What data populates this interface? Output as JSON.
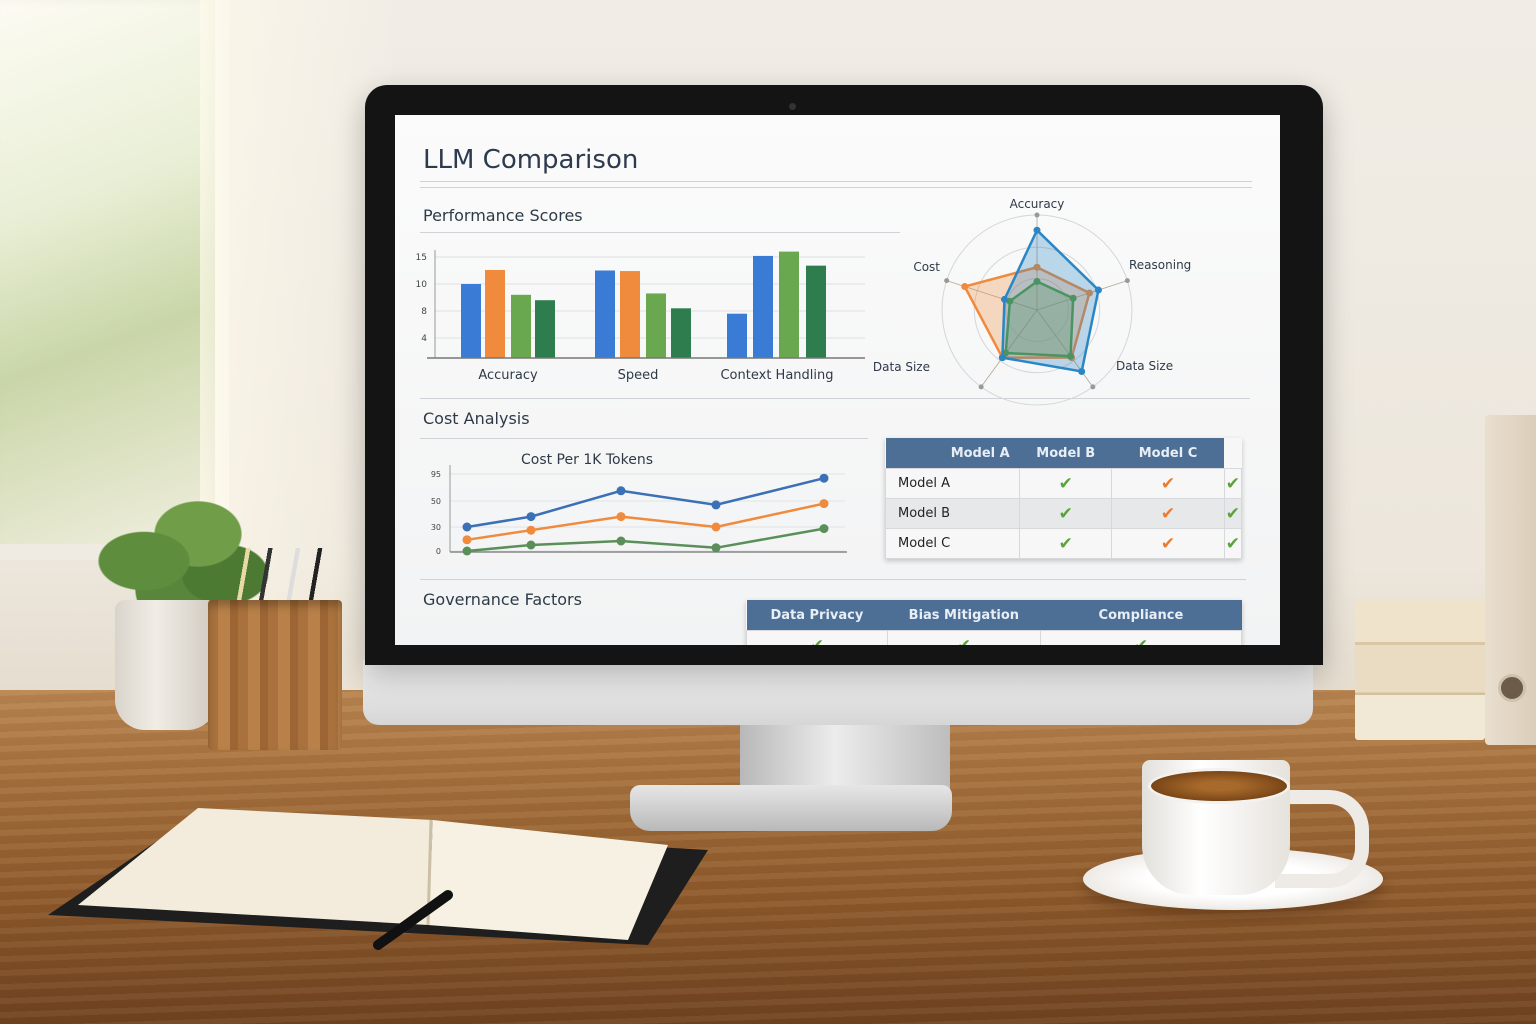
{
  "dashboard": {
    "title": "LLM Comparison",
    "sections": {
      "performance": "Performance Scores",
      "cost": "Cost Analysis",
      "governance": "Governance Factors"
    }
  },
  "chart_data": [
    {
      "type": "bar",
      "title": "",
      "categories": [
        "Accuracy",
        "Speed",
        "Context Handling"
      ],
      "y_ticks": [
        4,
        8,
        10,
        15
      ],
      "values": [
        [
          10,
          12.6,
          9.2,
          8.8
        ],
        [
          12.5,
          12.4,
          9.3,
          8.2
        ],
        [
          7.6,
          15.2,
          16,
          13.4
        ]
      ],
      "bar_colors": [
        [
          "#3a7bd5",
          "#f08a3c",
          "#6aa84f",
          "#2e7d4f"
        ],
        [
          "#3a7bd5",
          "#f08a3c",
          "#6aa84f",
          "#2e7d4f"
        ],
        [
          "#3a7bd5",
          "#3a7bd5",
          "#6aa84f",
          "#2e7d4f"
        ]
      ],
      "grid": true
    },
    {
      "type": "radar",
      "axes": [
        "Accuracy",
        "Reasoning",
        "Data Size",
        "Data Size",
        "Cost"
      ],
      "range": [
        0,
        1
      ],
      "series": [
        {
          "color": "#f08a3c",
          "values": [
            0.45,
            0.58,
            0.62,
            0.62,
            0.8
          ]
        },
        {
          "color": "#5a9a3a",
          "values": [
            0.3,
            0.4,
            0.6,
            0.56,
            0.3
          ]
        },
        {
          "color": "#2a86c4",
          "values": [
            0.84,
            0.68,
            0.8,
            0.62,
            0.36
          ]
        }
      ]
    },
    {
      "type": "line",
      "title": "Cost Per 1K Tokens",
      "y_ticks": [
        0,
        30,
        50,
        95
      ],
      "x": [
        1,
        2,
        3,
        4,
        5
      ],
      "series": [
        {
          "color": "#3b6fb6",
          "values": [
            30,
            38,
            67,
            47,
            88
          ]
        },
        {
          "color": "#f08a3c",
          "values": [
            14,
            26,
            38,
            30,
            48
          ]
        },
        {
          "color": "#5b8f5a",
          "values": [
            0,
            7.5,
            12.5,
            4,
            28
          ]
        }
      ],
      "grid": true
    }
  ],
  "model_table": {
    "headers": [
      "Model A",
      "Model B",
      "Model C"
    ],
    "rows": [
      {
        "label": "Model A",
        "cells": [
          "✔",
          "✔",
          "✔"
        ]
      },
      {
        "label": "Model B",
        "cells": [
          "✔",
          "✔",
          "✔"
        ]
      },
      {
        "label": "Model C",
        "cells": [
          "✔",
          "✔",
          "✔"
        ]
      }
    ],
    "check_colors": [
      "#5aa33c",
      "#ee7a2a",
      "#5aa33c"
    ]
  },
  "governance_table": {
    "headers": [
      "Data Privacy",
      "Bias Mitigation",
      "Compliance"
    ],
    "first_row": [
      "✔",
      "✔",
      "✔"
    ]
  }
}
